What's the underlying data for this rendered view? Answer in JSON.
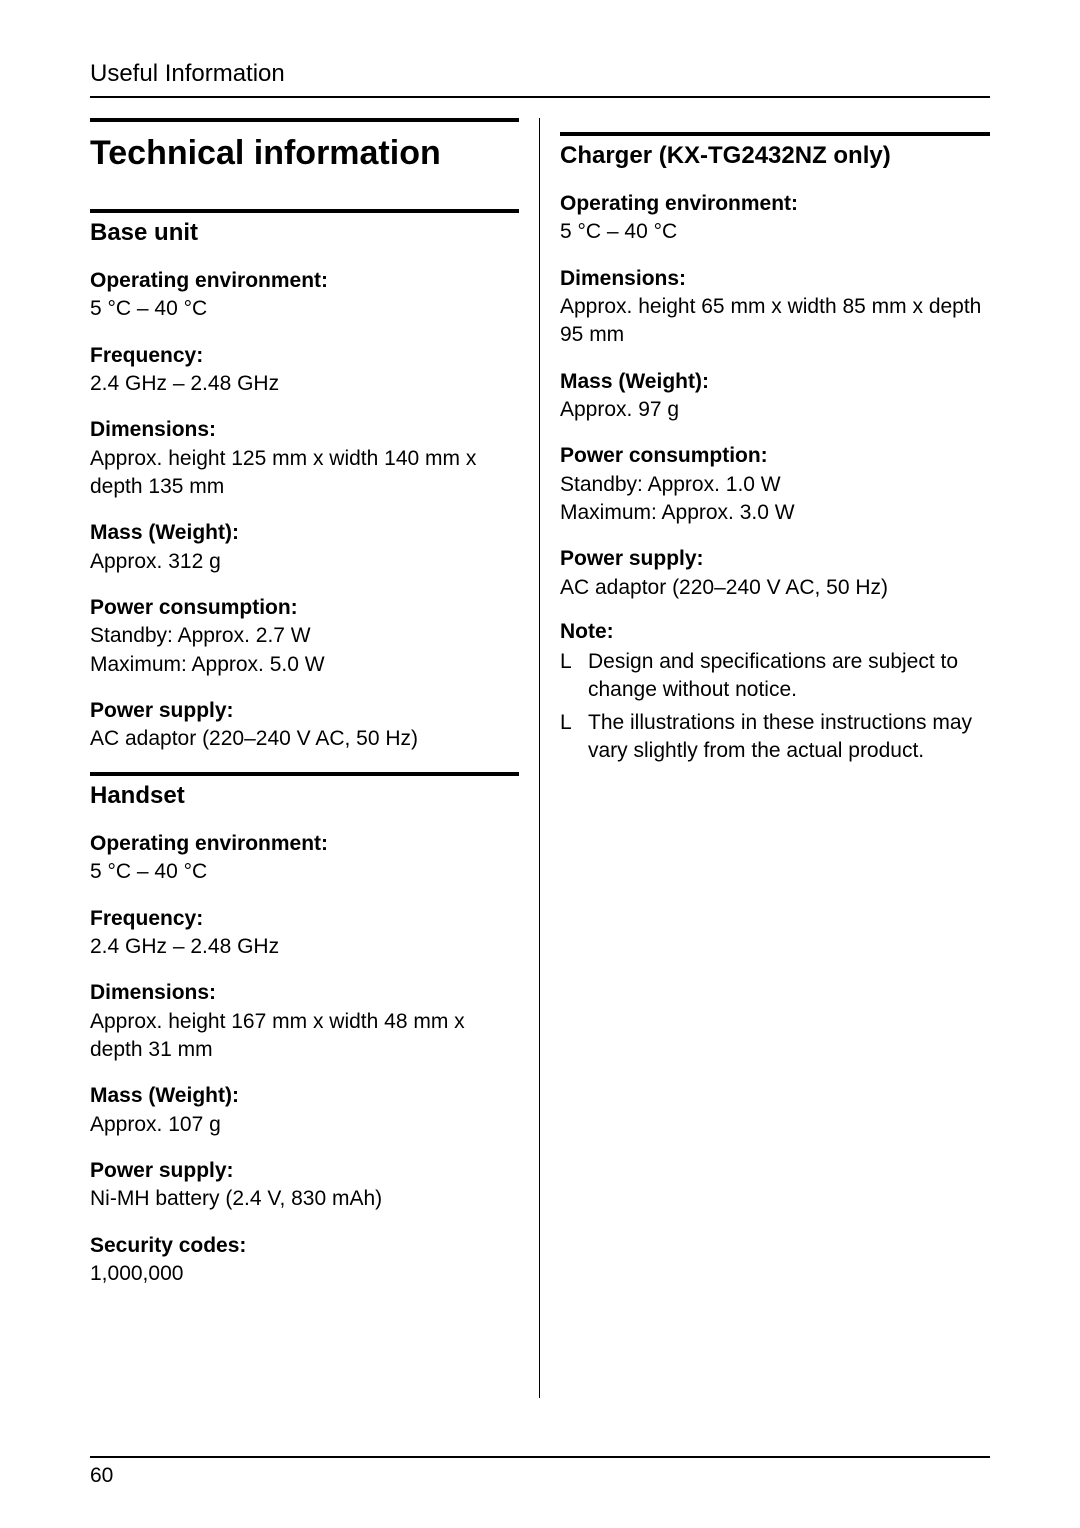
{
  "header": "Useful Information",
  "main_title": "Technical information",
  "page_number": "60",
  "note_bullet": "L",
  "left": {
    "sections": [
      {
        "title": "Base unit",
        "specs": [
          {
            "label": "Operating environment:",
            "value": "5 °C – 40 °C"
          },
          {
            "label": "Frequency:",
            "value": "2.4 GHz – 2.48 GHz"
          },
          {
            "label": "Dimensions:",
            "value": "Approx. height 125 mm x width 140 mm x depth 135 mm"
          },
          {
            "label": "Mass (Weight):",
            "value": "Approx. 312 g"
          },
          {
            "label": "Power consumption:",
            "value": "Standby: Approx. 2.7 W\nMaximum: Approx. 5.0 W"
          },
          {
            "label": "Power supply:",
            "value": "AC adaptor (220–240 V AC, 50 Hz)"
          }
        ]
      },
      {
        "title": "Handset",
        "specs": [
          {
            "label": "Operating environment:",
            "value": "5 °C – 40 °C"
          },
          {
            "label": "Frequency:",
            "value": "2.4 GHz – 2.48 GHz"
          },
          {
            "label": "Dimensions:",
            "value": "Approx. height 167 mm x width 48 mm x depth 31 mm"
          },
          {
            "label": "Mass (Weight):",
            "value": "Approx. 107 g"
          },
          {
            "label": "Power supply:",
            "value": "Ni-MH battery (2.4 V, 830 mAh)"
          },
          {
            "label": "Security codes:",
            "value": "1,000,000"
          }
        ]
      }
    ]
  },
  "right": {
    "sections": [
      {
        "title": "Charger (KX-TG2432NZ only)",
        "specs": [
          {
            "label": "Operating environment:",
            "value": "5 °C – 40 °C"
          },
          {
            "label": "Dimensions:",
            "value": "Approx. height 65 mm x width 85 mm x depth 95 mm"
          },
          {
            "label": "Mass (Weight):",
            "value": "Approx. 97 g"
          },
          {
            "label": "Power consumption:",
            "value": "Standby: Approx. 1.0 W\nMaximum: Approx. 3.0 W"
          },
          {
            "label": "Power supply:",
            "value": "AC adaptor (220–240 V AC, 50 Hz)"
          }
        ]
      }
    ],
    "note_label": "Note:",
    "notes": [
      "Design and specifications are subject to change without notice.",
      "The illustrations in these instructions may vary slightly from the actual product."
    ]
  }
}
